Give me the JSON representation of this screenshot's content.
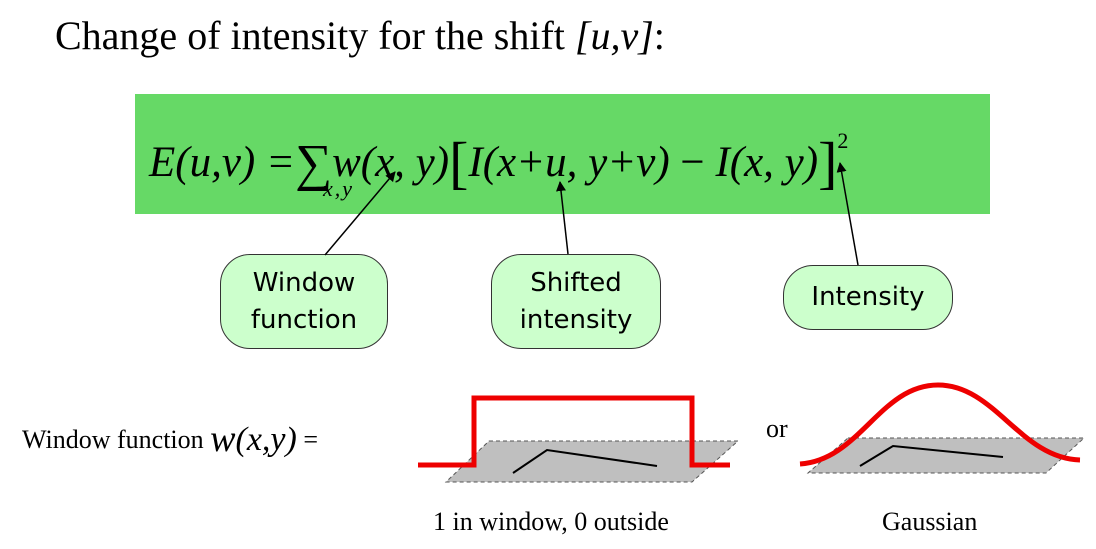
{
  "title": {
    "prefix": "Change of intensity for the shift ",
    "shift": "[u,v]",
    "suffix": ":"
  },
  "formula": {
    "lhs": "E(u,v) =",
    "sum": "∑",
    "window": "w(x, y)",
    "open_bracket": "[",
    "shifted": "I(x+u, y+v)",
    "minus": " − ",
    "intensity": "I(x, y)",
    "close_bracket": "]",
    "power": "2",
    "sum_index": "x,y"
  },
  "callouts": {
    "window": [
      "Window",
      "function"
    ],
    "shifted": [
      "Shifted",
      "intensity"
    ],
    "intensity": [
      "Intensity"
    ]
  },
  "window_row": {
    "label": "Window function ",
    "w": "w",
    "args": "(x,y)",
    "equals": " =",
    "or": "or",
    "box_caption": "1 in window, 0 outside",
    "gauss_caption": "Gaussian"
  },
  "colors": {
    "formula_bg": "#66d966",
    "callout_bg": "#ccffcc",
    "curve": "#ee0000",
    "plane": "#bfbfbf"
  }
}
